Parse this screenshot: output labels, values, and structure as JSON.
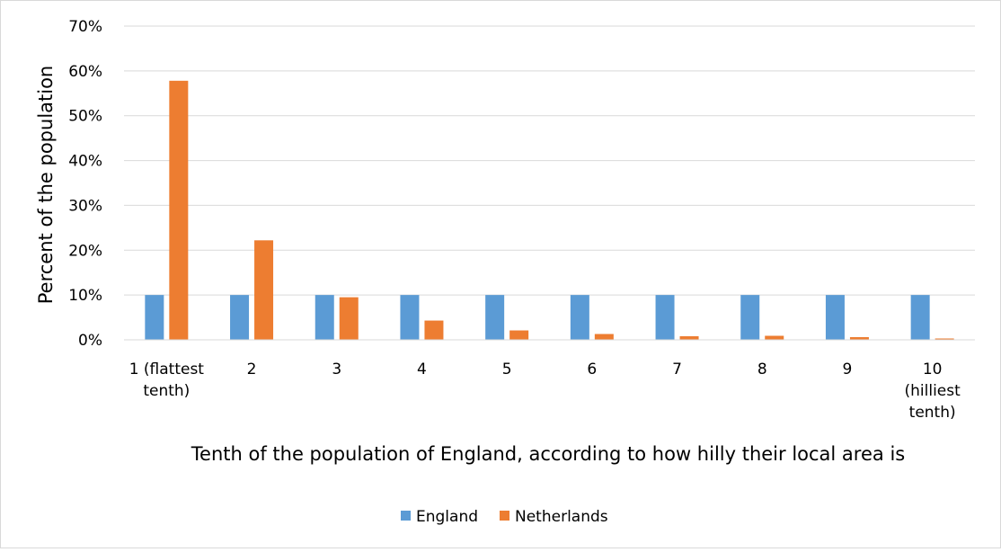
{
  "chart_data": {
    "type": "bar",
    "title": "",
    "xlabel": "Tenth of the population of England, according to how hilly their local area is",
    "ylabel": "Percent of the population",
    "ylim": [
      0,
      70
    ],
    "y_ticks": [
      "0%",
      "10%",
      "20%",
      "30%",
      "40%",
      "50%",
      "60%",
      "70%"
    ],
    "y_tick_values": [
      0,
      10,
      20,
      30,
      40,
      50,
      60,
      70
    ],
    "grid": true,
    "legend_position": "bottom",
    "categories": [
      [
        "1 (flattest",
        "tenth)"
      ],
      [
        "2"
      ],
      [
        "3"
      ],
      [
        "4"
      ],
      [
        "5"
      ],
      [
        "6"
      ],
      [
        "7"
      ],
      [
        "8"
      ],
      [
        "9"
      ],
      [
        "10",
        "(hilliest",
        "tenth)"
      ]
    ],
    "series": [
      {
        "name": "England",
        "color": "#5b9bd5",
        "values": [
          10,
          10,
          10,
          10,
          10,
          10,
          10,
          10,
          10,
          10
        ]
      },
      {
        "name": "Netherlands",
        "color": "#ed7d31",
        "values": [
          57.8,
          22.2,
          9.5,
          4.3,
          2.1,
          1.3,
          0.8,
          0.9,
          0.6,
          0.3
        ]
      }
    ]
  }
}
